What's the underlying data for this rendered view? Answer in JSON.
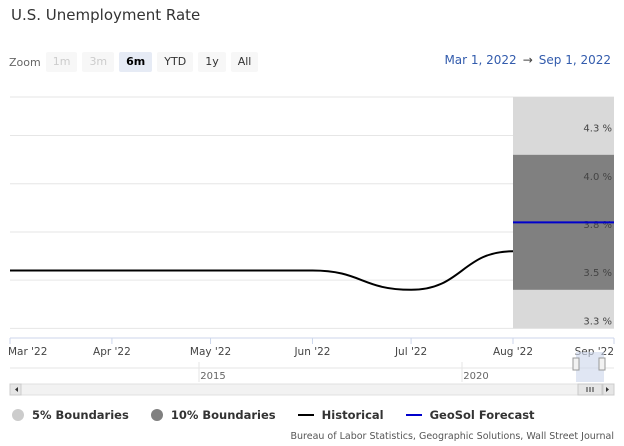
{
  "title": "U.S. Unemployment Rate",
  "zoom": {
    "label": "Zoom",
    "buttons": [
      "1m",
      "3m",
      "6m",
      "YTD",
      "1y",
      "All"
    ],
    "selected": "6m",
    "disabled": [
      "1m",
      "3m"
    ]
  },
  "range": {
    "from": "Mar 1, 2022",
    "arrow": "→",
    "to": "Sep 1, 2022"
  },
  "colors": {
    "band5": "#d9d9d9",
    "band10": "#808080",
    "historical": "#000000",
    "forecast": "#0000cc",
    "grid": "#e6e6e6",
    "navigator_mask": "#ccd6eb"
  },
  "chart_data": {
    "type": "line",
    "x_axis": {
      "tick_labels": [
        "Mar '22",
        "Apr '22",
        "May '22",
        "Jun '22",
        "Jul '22",
        "Aug '22",
        "Sep '22"
      ],
      "range": [
        "2022-03-01",
        "2022-09-01"
      ]
    },
    "y_axis": {
      "tick_labels": [
        "3.3 %",
        "3.5 %",
        "3.8 %",
        "4.0 %",
        "4.3 %"
      ],
      "range": [
        3.25,
        4.5
      ]
    },
    "series": [
      {
        "name": "Historical",
        "type": "line",
        "x": [
          "2022-03-01",
          "2022-04-01",
          "2022-05-01",
          "2022-06-01",
          "2022-07-01",
          "2022-08-01"
        ],
        "y": [
          3.6,
          3.6,
          3.6,
          3.6,
          3.5,
          3.7
        ]
      },
      {
        "name": "GeoSol Forecast",
        "type": "line",
        "x": [
          "2022-08-01",
          "2022-09-01"
        ],
        "y": [
          3.85,
          3.85
        ]
      },
      {
        "name": "5% Boundaries",
        "type": "arearange",
        "x": [
          "2022-08-01",
          "2022-09-01"
        ],
        "low": [
          3.3,
          3.3
        ],
        "high": [
          4.5,
          4.5
        ]
      },
      {
        "name": "10% Boundaries",
        "type": "arearange",
        "x": [
          "2022-08-01",
          "2022-09-01"
        ],
        "low": [
          3.5,
          3.5
        ],
        "high": [
          4.2,
          4.2
        ]
      }
    ],
    "navigator": {
      "labels": [
        "2015",
        "2020"
      ]
    }
  },
  "legend": [
    {
      "name": "5% Boundaries",
      "symbol": "dot",
      "color": "#cccccc"
    },
    {
      "name": "10% Boundaries",
      "symbol": "dot",
      "color": "#808080"
    },
    {
      "name": "Historical",
      "symbol": "line",
      "color": "#000000"
    },
    {
      "name": "GeoSol Forecast",
      "symbol": "line",
      "color": "#0000cc"
    }
  ],
  "credits": "Bureau of Labor Statistics, Geographic Solutions, Wall Street Journal"
}
